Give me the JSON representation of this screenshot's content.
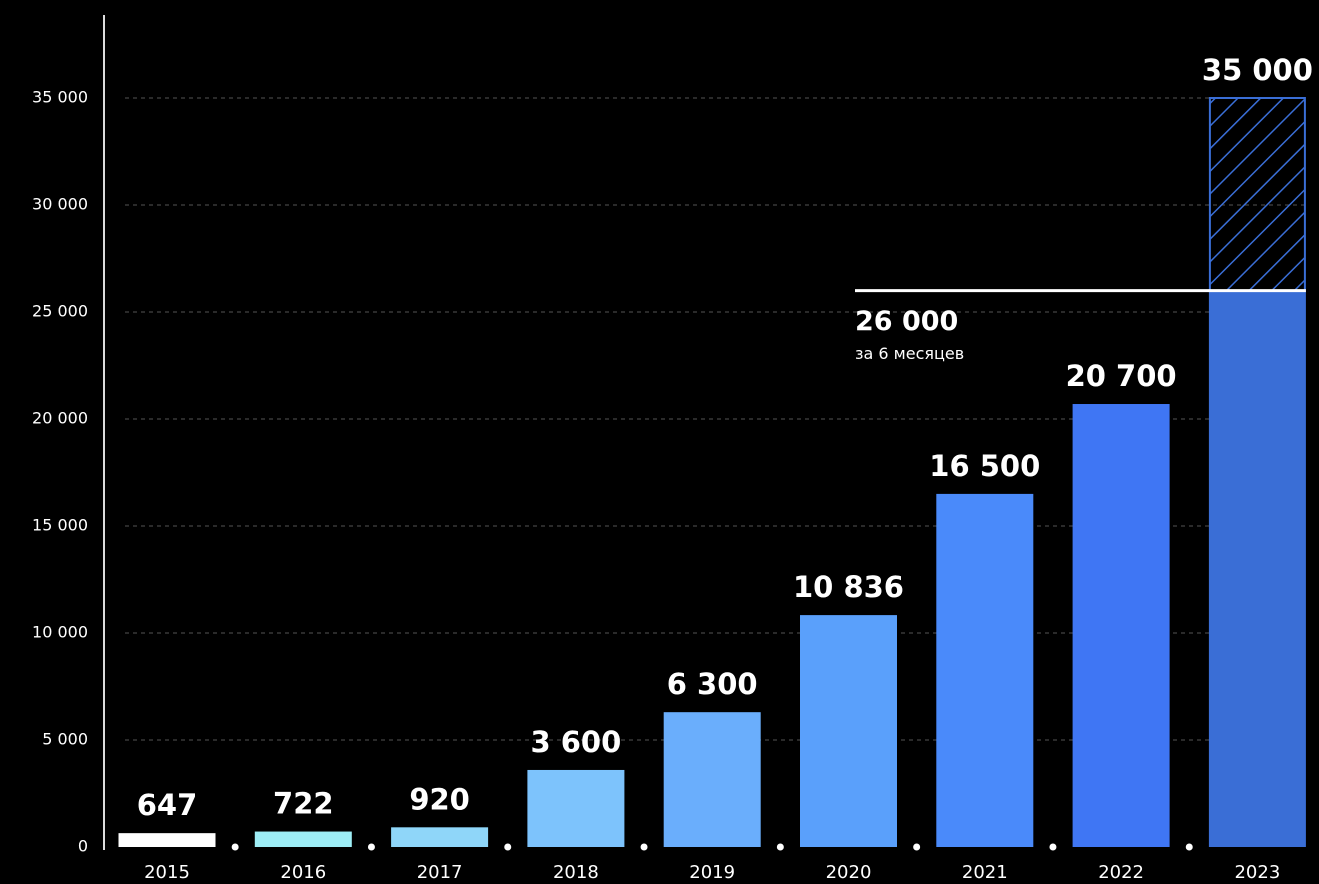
{
  "chart_data": {
    "type": "bar",
    "categories": [
      "2015",
      "2016",
      "2017",
      "2018",
      "2019",
      "2020",
      "2021",
      "2022",
      "2023"
    ],
    "values": [
      647,
      722,
      920,
      3600,
      6300,
      10836,
      16500,
      20700,
      35000
    ],
    "value_labels": [
      "647",
      "722",
      "920",
      "3 600",
      "6 300",
      "10 836",
      "16 500",
      "20 700",
      "35 000"
    ],
    "colors": [
      "#ffffff",
      "#9eeef6",
      "#8fd6f9",
      "#7dc3fc",
      "#6aaefc",
      "#5aa0fb",
      "#4a8afa",
      "#3f76f4",
      "#3a6ed6"
    ],
    "label_colors": [
      "#ffffff",
      "#a6f0f7",
      "#8ccdf9",
      "#78b4fb",
      "#6ea6fb",
      "#6aa0fa",
      "#5d92f8",
      "#5788f5",
      "#4f7fe8"
    ],
    "ylim": [
      0,
      35000
    ],
    "yticks": [
      0,
      {
        "value": 5000,
        "label": "5 000"
      },
      {
        "value": 10000,
        "label": "10 000"
      },
      {
        "value": 15000,
        "label": "15 000"
      },
      {
        "value": 20000,
        "label": "20 000"
      },
      {
        "value": 25000,
        "label": "25 000"
      },
      {
        "value": 30000,
        "label": "30 000"
      },
      {
        "value": 35000,
        "label": "35 000"
      }
    ],
    "grid": true,
    "annotation": {
      "value": 26000,
      "label": "26 000",
      "text": "за 6 месяцев"
    }
  }
}
